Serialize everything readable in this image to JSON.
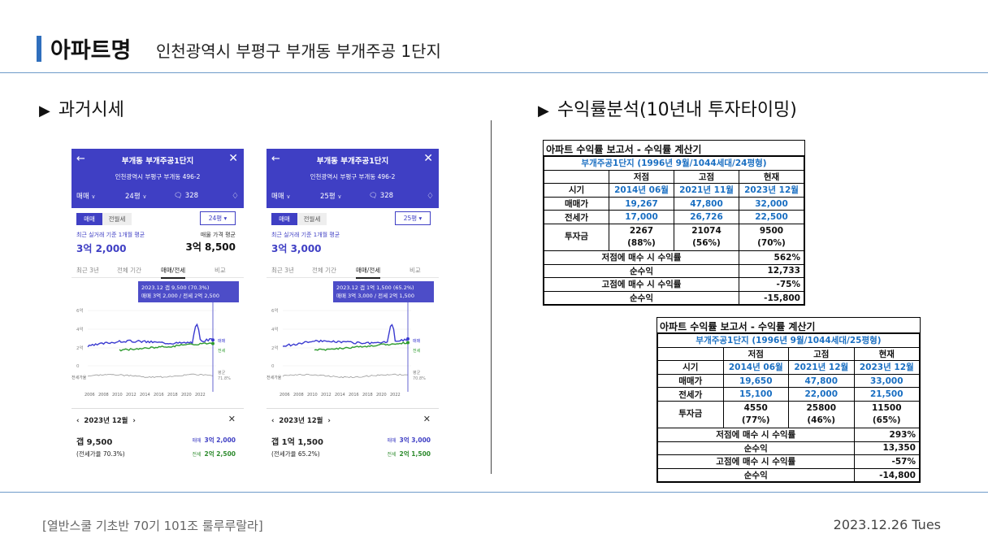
{
  "header": {
    "title": "아파트명",
    "subtitle": "인천광역시 부평구 부개동 부개주공 1단지"
  },
  "sections": {
    "left": "과거시세",
    "right": "수익률분석(10년내 투자타이밍)"
  },
  "phones": [
    {
      "name": "부개동 부개주공1단지",
      "address": "인천광역시 부평구 부개동 496-2",
      "deal_type": "매매",
      "pyeong": "24평",
      "count": "328",
      "tab_sale": "매매",
      "tab_jeonse": "전월세",
      "select": "24평",
      "recent_label": "최근 실거래 기준 1개월 평균",
      "recent_value": "3억 2,000",
      "ask_label": "매물 가격 평균",
      "ask_value": "3억 8,500",
      "ranges": [
        "최근 3년",
        "전체 기간",
        "매매/전세",
        "비교"
      ],
      "tooltip_line1": "2023.12  갭 9,500 (70.3%)",
      "tooltip_line2": "매매 3억 2,000 / 전세 2억 2,500",
      "y_ticks": [
        "6억",
        "4억",
        "2억",
        "0"
      ],
      "x_ticks": [
        "2006",
        "2008",
        "2010",
        "2012",
        "2014",
        "2016",
        "2018",
        "2020",
        "2022"
      ],
      "ratio_axis_label": "전세가율",
      "legend_sale": "매매",
      "legend_jeonse": "전세",
      "legend_avg": "평균",
      "avg_value": "71.8%",
      "month": "2023년 12월",
      "gap": "갭 9,500",
      "ratio_text": "(전세가율 70.3%)",
      "sale_small": "매매",
      "sale_value": "3억 2,000",
      "jeonse_small": "전세",
      "jeonse_value": "2억 2,500"
    },
    {
      "name": "부개동 부개주공1단지",
      "address": "인천광역시 부평구 부개동 496-2",
      "deal_type": "매매",
      "pyeong": "25평",
      "count": "328",
      "tab_sale": "매매",
      "tab_jeonse": "전월세",
      "select": "25평",
      "recent_label": "최근 실거래 기준 1개월 평균",
      "recent_value": "3억 3,000",
      "ask_label": "",
      "ask_value": "",
      "ranges": [
        "최근 3년",
        "전체 기간",
        "매매/전세",
        "비교"
      ],
      "tooltip_line1": "2023.12  갭 1억 1,500 (65.2%)",
      "tooltip_line2": "매매 3억 3,000 / 전세 2억 1,500",
      "y_ticks": [
        "6억",
        "4억",
        "2억",
        "0"
      ],
      "x_ticks": [
        "2006",
        "2008",
        "2010",
        "2012",
        "2014",
        "2016",
        "2018",
        "2020",
        "2022"
      ],
      "ratio_axis_label": "전세가율",
      "legend_sale": "매매",
      "legend_jeonse": "전세",
      "legend_avg": "평균",
      "avg_value": "70.8%",
      "month": "2023년 12월",
      "gap": "갭 1억 1,500",
      "ratio_text": "(전세가율 65.2%)",
      "sale_small": "매매",
      "sale_value": "3억 3,000",
      "jeonse_small": "전세",
      "jeonse_value": "2억 1,500"
    }
  ],
  "reports": [
    {
      "title": "아파트 수익률 보고서 - 수익률 계산기",
      "subtitle": "부개주공1단지 (1996년 9월/1044세대/24평형)",
      "cols": [
        "",
        "저점",
        "고점",
        "현재"
      ],
      "rows": [
        {
          "label": "시기",
          "v": [
            "2014년 06월",
            "2021년 11월",
            "2023년 12월"
          ],
          "blue": true
        },
        {
          "label": "매매가",
          "v": [
            "19,267",
            "47,800",
            "32,000"
          ],
          "blue": true
        },
        {
          "label": "전세가",
          "v": [
            "17,000",
            "26,726",
            "22,500"
          ],
          "blue": true
        }
      ],
      "invest_label": "투자금",
      "invest": [
        [
          "2267",
          "(88%)"
        ],
        [
          "21074",
          "(56%)"
        ],
        [
          "9500",
          "(70%)"
        ]
      ],
      "summary": [
        {
          "label": "저점에 매수 시 수익률",
          "value": "562%"
        },
        {
          "label": "순수익",
          "value": "12,733"
        },
        {
          "label": "고점에 매수 시 수익률",
          "value": "-75%"
        },
        {
          "label": "순수익",
          "value": "-15,800"
        }
      ]
    },
    {
      "title": "아파트 수익률 보고서 - 수익률 계산기",
      "subtitle": "부개주공1단지 (1996년 9월/1044세대/25평형)",
      "cols": [
        "",
        "저점",
        "고점",
        "현재"
      ],
      "rows": [
        {
          "label": "시기",
          "v": [
            "2014년 06월",
            "2021년 12월",
            "2023년 12월"
          ],
          "blue": true
        },
        {
          "label": "매매가",
          "v": [
            "19,650",
            "47,800",
            "33,000"
          ],
          "blue": true
        },
        {
          "label": "전세가",
          "v": [
            "15,100",
            "22,000",
            "21,500"
          ],
          "blue": true
        }
      ],
      "invest_label": "투자금",
      "invest": [
        [
          "4550",
          "(77%)"
        ],
        [
          "25800",
          "(46%)"
        ],
        [
          "11500",
          "(65%)"
        ]
      ],
      "summary": [
        {
          "label": "저점에 매수 시 수익률",
          "value": "293%"
        },
        {
          "label": "순수익",
          "value": "13,350"
        },
        {
          "label": "고점에 매수 시 수익률",
          "value": "-57%"
        },
        {
          "label": "순수익",
          "value": "-14,800"
        }
      ]
    }
  ],
  "footer": {
    "left": "[열반스쿨 기초반 70기 101조 룰루루랄라]",
    "right": "2023.12.26  Tues"
  },
  "colors": {
    "accent": "#2f6fbd",
    "app_purple": "#3f3fc4",
    "sale_line": "#3a3ad0",
    "jeonse_line": "#2e9b2e",
    "table_blue": "#1a6fc2"
  }
}
